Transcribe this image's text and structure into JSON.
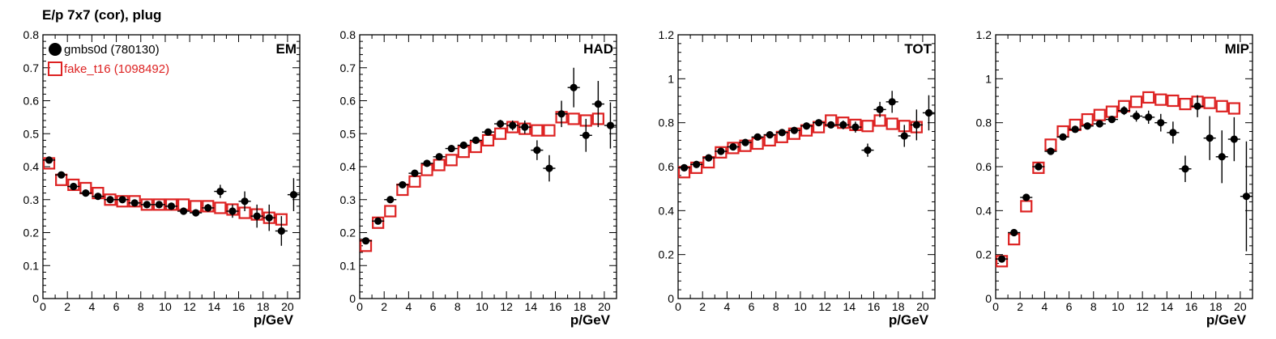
{
  "title": "E/p 7x7 (cor), plug",
  "chart_data": [
    {
      "type": "scatter",
      "panel_label": "EM",
      "xlabel": "p/GeV",
      "ylabel": "",
      "xlim": [
        0,
        21
      ],
      "ylim": [
        0,
        0.8
      ],
      "xticks": [
        0,
        2,
        4,
        6,
        8,
        10,
        12,
        14,
        16,
        18,
        20
      ],
      "yticks": [
        0,
        0.1,
        0.2,
        0.3,
        0.4,
        0.5,
        0.6,
        0.7,
        0.8
      ],
      "ytick_labels": [
        "0",
        "0.1",
        "0.2",
        "0.3",
        "0.4",
        "0.5",
        "0.6",
        "0.7",
        "0.8"
      ],
      "legend": true,
      "series": [
        {
          "name": "gmbs0d (780130)",
          "marker": "filled-circle",
          "color": "#000000",
          "x": [
            0.5,
            1.5,
            2.5,
            3.5,
            4.5,
            5.5,
            6.5,
            7.5,
            8.5,
            9.5,
            10.5,
            11.5,
            12.5,
            13.5,
            14.5,
            15.5,
            16.5,
            17.5,
            18.5,
            19.5,
            20.5
          ],
          "y": [
            0.42,
            0.375,
            0.34,
            0.32,
            0.31,
            0.3,
            0.3,
            0.29,
            0.285,
            0.285,
            0.28,
            0.265,
            0.26,
            0.275,
            0.325,
            0.265,
            0.295,
            0.25,
            0.245,
            0.205,
            0.315
          ],
          "yerr": [
            0.005,
            0.005,
            0.005,
            0.005,
            0.005,
            0.005,
            0.005,
            0.005,
            0.005,
            0.005,
            0.005,
            0.008,
            0.01,
            0.012,
            0.02,
            0.02,
            0.03,
            0.035,
            0.04,
            0.045,
            0.05
          ]
        },
        {
          "name": "fake_t16 (1098492)",
          "marker": "open-square",
          "color": "#dd2222",
          "x": [
            0.5,
            1.5,
            2.5,
            3.5,
            4.5,
            5.5,
            6.5,
            7.5,
            8.5,
            9.5,
            10.5,
            11.5,
            12.5,
            13.5,
            14.5,
            15.5,
            16.5,
            17.5,
            18.5,
            19.5
          ],
          "y": [
            0.41,
            0.36,
            0.345,
            0.335,
            0.32,
            0.3,
            0.295,
            0.295,
            0.285,
            0.285,
            0.285,
            0.285,
            0.28,
            0.28,
            0.275,
            0.27,
            0.26,
            0.255,
            0.245,
            0.24
          ]
        }
      ]
    },
    {
      "type": "scatter",
      "panel_label": "HAD",
      "xlabel": "p/GeV",
      "ylabel": "",
      "xlim": [
        0,
        21
      ],
      "ylim": [
        0,
        0.8
      ],
      "xticks": [
        0,
        2,
        4,
        6,
        8,
        10,
        12,
        14,
        16,
        18,
        20
      ],
      "yticks": [
        0,
        0.1,
        0.2,
        0.3,
        0.4,
        0.5,
        0.6,
        0.7,
        0.8
      ],
      "ytick_labels": [
        "0",
        "0.1",
        "0.2",
        "0.3",
        "0.4",
        "0.5",
        "0.6",
        "0.7",
        "0.8"
      ],
      "legend": false,
      "series": [
        {
          "name": "gmbs0d (780130)",
          "marker": "filled-circle",
          "color": "#000000",
          "x": [
            0.5,
            1.5,
            2.5,
            3.5,
            4.5,
            5.5,
            6.5,
            7.5,
            8.5,
            9.5,
            10.5,
            11.5,
            12.5,
            13.5,
            14.5,
            15.5,
            16.5,
            17.5,
            18.5,
            19.5,
            20.5
          ],
          "y": [
            0.175,
            0.235,
            0.3,
            0.345,
            0.38,
            0.41,
            0.43,
            0.455,
            0.465,
            0.48,
            0.505,
            0.53,
            0.525,
            0.52,
            0.45,
            0.395,
            0.56,
            0.64,
            0.495,
            0.59,
            0.525
          ],
          "yerr": [
            0.005,
            0.005,
            0.005,
            0.005,
            0.005,
            0.005,
            0.006,
            0.006,
            0.007,
            0.008,
            0.01,
            0.012,
            0.015,
            0.02,
            0.03,
            0.04,
            0.04,
            0.06,
            0.05,
            0.07,
            0.07
          ]
        },
        {
          "name": "fake_t16 (1098492)",
          "marker": "open-square",
          "color": "#dd2222",
          "x": [
            0.5,
            1.5,
            2.5,
            3.5,
            4.5,
            5.5,
            6.5,
            7.5,
            8.5,
            9.5,
            10.5,
            11.5,
            12.5,
            13.5,
            14.5,
            15.5,
            16.5,
            17.5,
            18.5,
            19.5
          ],
          "y": [
            0.16,
            0.23,
            0.265,
            0.33,
            0.355,
            0.39,
            0.405,
            0.42,
            0.445,
            0.46,
            0.48,
            0.5,
            0.52,
            0.515,
            0.51,
            0.51,
            0.55,
            0.545,
            0.54,
            0.545
          ]
        }
      ]
    },
    {
      "type": "scatter",
      "panel_label": "TOT",
      "xlabel": "p/GeV",
      "ylabel": "",
      "xlim": [
        0,
        21
      ],
      "ylim": [
        0,
        1.2
      ],
      "xticks": [
        0,
        2,
        4,
        6,
        8,
        10,
        12,
        14,
        16,
        18,
        20
      ],
      "yticks": [
        0,
        0.2,
        0.4,
        0.6,
        0.8,
        1.0,
        1.2
      ],
      "ytick_labels": [
        "0",
        "0.2",
        "0.4",
        "0.6",
        "0.8",
        "1",
        "1.2"
      ],
      "legend": false,
      "series": [
        {
          "name": "gmbs0d (780130)",
          "marker": "filled-circle",
          "color": "#000000",
          "x": [
            0.5,
            1.5,
            2.5,
            3.5,
            4.5,
            5.5,
            6.5,
            7.5,
            8.5,
            9.5,
            10.5,
            11.5,
            12.5,
            13.5,
            14.5,
            15.5,
            16.5,
            17.5,
            18.5,
            19.5,
            20.5
          ],
          "y": [
            0.595,
            0.61,
            0.64,
            0.67,
            0.69,
            0.71,
            0.735,
            0.745,
            0.755,
            0.765,
            0.785,
            0.8,
            0.79,
            0.79,
            0.78,
            0.675,
            0.86,
            0.895,
            0.74,
            0.79,
            0.845
          ],
          "yerr": [
            0.005,
            0.005,
            0.005,
            0.005,
            0.005,
            0.005,
            0.006,
            0.006,
            0.007,
            0.008,
            0.01,
            0.012,
            0.015,
            0.02,
            0.025,
            0.03,
            0.035,
            0.05,
            0.05,
            0.07,
            0.08
          ]
        },
        {
          "name": "fake_t16 (1098492)",
          "marker": "open-square",
          "color": "#dd2222",
          "x": [
            0.5,
            1.5,
            2.5,
            3.5,
            4.5,
            5.5,
            6.5,
            7.5,
            8.5,
            9.5,
            10.5,
            11.5,
            12.5,
            13.5,
            14.5,
            15.5,
            16.5,
            17.5,
            18.5,
            19.5
          ],
          "y": [
            0.575,
            0.595,
            0.62,
            0.665,
            0.685,
            0.695,
            0.705,
            0.72,
            0.735,
            0.75,
            0.765,
            0.78,
            0.81,
            0.8,
            0.79,
            0.785,
            0.81,
            0.795,
            0.785,
            0.78
          ]
        }
      ]
    },
    {
      "type": "scatter",
      "panel_label": "MIP",
      "xlabel": "p/GeV",
      "ylabel": "",
      "xlim": [
        0,
        21
      ],
      "ylim": [
        0,
        1.2
      ],
      "xticks": [
        0,
        2,
        4,
        6,
        8,
        10,
        12,
        14,
        16,
        18,
        20
      ],
      "yticks": [
        0,
        0.2,
        0.4,
        0.6,
        0.8,
        1.0,
        1.2
      ],
      "ytick_labels": [
        "0",
        "0.2",
        "0.4",
        "0.6",
        "0.8",
        "1",
        "1.2"
      ],
      "legend": false,
      "series": [
        {
          "name": "gmbs0d (780130)",
          "marker": "filled-circle",
          "color": "#000000",
          "x": [
            0.5,
            1.5,
            2.5,
            3.5,
            4.5,
            5.5,
            6.5,
            7.5,
            8.5,
            9.5,
            10.5,
            11.5,
            12.5,
            13.5,
            14.5,
            15.5,
            16.5,
            17.5,
            18.5,
            19.5,
            20.5
          ],
          "y": [
            0.18,
            0.3,
            0.46,
            0.6,
            0.67,
            0.735,
            0.77,
            0.785,
            0.795,
            0.815,
            0.855,
            0.83,
            0.825,
            0.8,
            0.755,
            0.59,
            0.875,
            0.73,
            0.645,
            0.725,
            0.465
          ],
          "yerr": [
            0.005,
            0.005,
            0.005,
            0.005,
            0.005,
            0.006,
            0.008,
            0.01,
            0.012,
            0.015,
            0.02,
            0.025,
            0.03,
            0.04,
            0.05,
            0.06,
            0.05,
            0.1,
            0.12,
            0.1,
            0.25
          ]
        },
        {
          "name": "fake_t16 (1098492)",
          "marker": "open-square",
          "color": "#dd2222",
          "x": [
            0.5,
            1.5,
            2.5,
            3.5,
            4.5,
            5.5,
            6.5,
            7.5,
            8.5,
            9.5,
            10.5,
            11.5,
            12.5,
            13.5,
            14.5,
            15.5,
            16.5,
            17.5,
            18.5,
            19.5
          ],
          "y": [
            0.17,
            0.27,
            0.42,
            0.595,
            0.7,
            0.76,
            0.79,
            0.815,
            0.835,
            0.85,
            0.875,
            0.895,
            0.915,
            0.905,
            0.9,
            0.885,
            0.895,
            0.89,
            0.875,
            0.865
          ]
        }
      ]
    }
  ]
}
